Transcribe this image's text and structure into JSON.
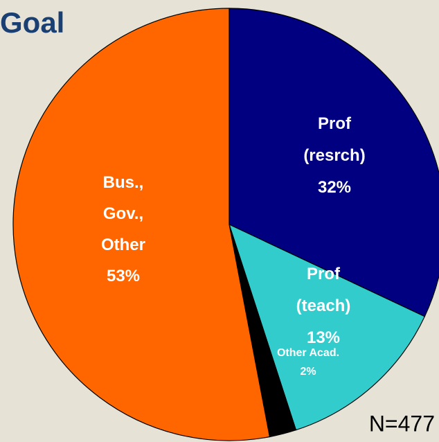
{
  "chart_data": {
    "type": "pie",
    "title": "Goal",
    "categories": [
      [
        "Prof",
        "(resrch)"
      ],
      [
        "Prof",
        "(teach)"
      ],
      [
        "Other Acad."
      ],
      [
        "Bus.,",
        "Gov.,",
        "Other"
      ]
    ],
    "values": [
      32,
      13,
      2,
      53
    ],
    "value_labels": [
      "32%",
      "13%",
      "2%",
      "53%"
    ],
    "colors": [
      "#000080",
      "#33cccc",
      "#000000",
      "#ff6600"
    ],
    "annotation": "N=477"
  }
}
